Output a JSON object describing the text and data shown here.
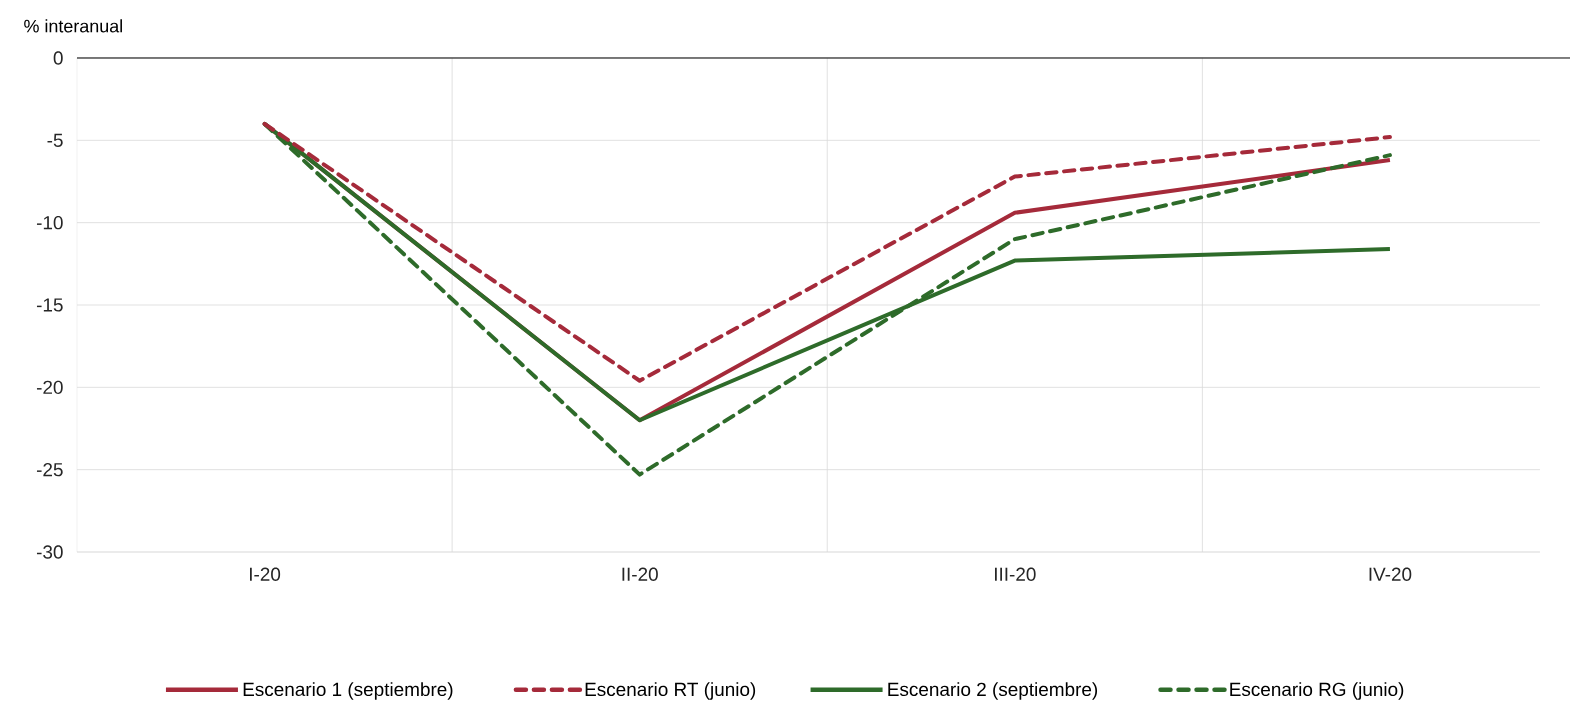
{
  "chart_data": {
    "type": "line",
    "ylabel": "% interanual",
    "categories": [
      "I-20",
      "II-20",
      "III-20",
      "IV-20"
    ],
    "series": [
      {
        "name": "Escenario 1 (septiembre)",
        "color": "#a52a3a",
        "line_style": "solid",
        "values": [
          -4.0,
          -22.0,
          -9.4,
          -6.2
        ]
      },
      {
        "name": "Escenario RT (junio)",
        "color": "#a52a3a",
        "line_style": "dashed",
        "values": [
          -4.0,
          -19.6,
          -7.2,
          -4.8
        ]
      },
      {
        "name": "Escenario 2 (septiembre)",
        "color": "#2e6b2a",
        "line_style": "solid",
        "values": [
          -4.0,
          -22.0,
          -12.3,
          -11.6
        ]
      },
      {
        "name": "Escenario RG (junio)",
        "color": "#2e6b2a",
        "line_style": "dashed",
        "values": [
          -4.0,
          -25.3,
          -11.0,
          -5.9
        ]
      }
    ],
    "ylim": [
      -30,
      0
    ],
    "yticks": [
      0,
      -5,
      -10,
      -15,
      -20,
      -25,
      -30
    ],
    "grid": true,
    "legend": "bottom",
    "marker": "none"
  }
}
